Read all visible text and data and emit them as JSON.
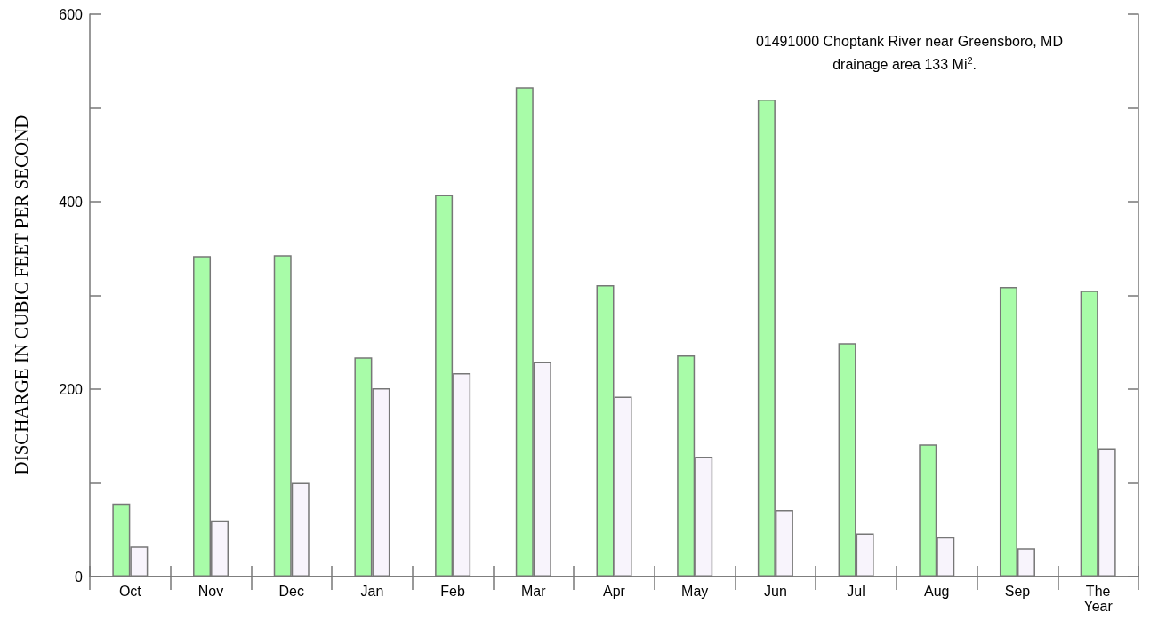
{
  "chart_data": {
    "type": "bar",
    "ylabel": "DISCHARGE IN CUBIC FEET PER SECOND",
    "annotations": [
      "01491000 Choptank River near Greensboro, MD",
      "drainage area 133 Mi$^{2}$."
    ],
    "categories": [
      "Oct",
      "Nov",
      "Dec",
      "Jan",
      "Feb",
      "Mar",
      "Apr",
      "May",
      "Jun",
      "Jul",
      "Aug",
      "Sep",
      "The\nYear"
    ],
    "series": [
      {
        "color": "#a8fca8",
        "values": [
          78,
          342,
          343,
          234,
          407,
          522,
          311,
          236,
          509,
          249,
          141,
          309,
          305
        ]
      },
      {
        "color": "#f8f4fc",
        "values": [
          32,
          60,
          100,
          201,
          217,
          229,
          192,
          128,
          71,
          46,
          42,
          30,
          137
        ]
      }
    ],
    "ylim": [
      0,
      600
    ],
    "yticks": [
      0,
      {
        "value": 100,
        "label": null
      },
      200,
      {
        "value": 300,
        "label": null
      },
      400,
      {
        "value": 500,
        "label": null
      },
      600
    ],
    "grid": false
  }
}
